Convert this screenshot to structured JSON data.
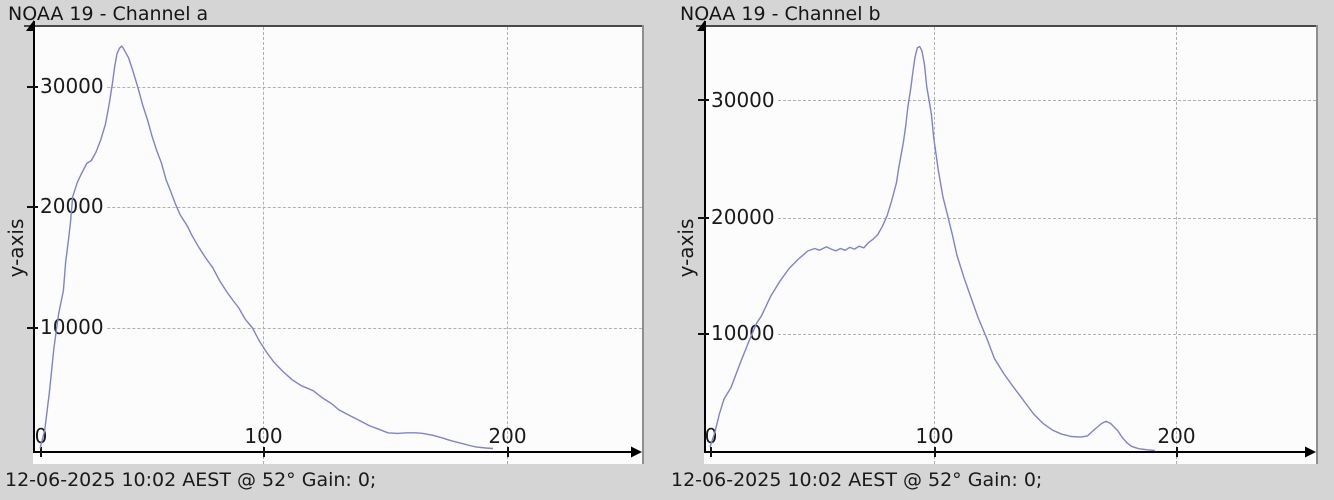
{
  "page": {
    "background": "#d5d5d5",
    "plot_background": "#fcfcfc",
    "grid_color": "#b0b0b0",
    "curve_color": "#8181d1"
  },
  "charts": [
    {
      "title": "NOAA 19 - Channel a",
      "y_axis_label": "y-axis",
      "caption": "12-06-2025 10:02 AEST @ 52° Gain: 0;",
      "x_tick_labels": [
        "0",
        "100",
        "200"
      ],
      "y_tick_labels": [
        "30000",
        "20000",
        "10000"
      ],
      "line_color": "#8181d1",
      "chart_data": {
        "type": "line",
        "title": "NOAA 19 - Channel a",
        "xlabel": "",
        "ylabel": "y-axis",
        "x_ticks": [
          0,
          100,
          200
        ],
        "y_ticks": [
          10000,
          20000,
          30000
        ],
        "xlim": [
          0,
          258
        ],
        "ylim": [
          0,
          35200
        ],
        "grid": true,
        "points": [
          [
            0,
            0
          ],
          [
            2,
            1500
          ],
          [
            4,
            4600
          ],
          [
            6,
            8400
          ],
          [
            8,
            11200
          ],
          [
            10,
            13100
          ],
          [
            11,
            15500
          ],
          [
            12,
            17000
          ],
          [
            13,
            18700
          ],
          [
            14,
            20900
          ],
          [
            16,
            22100
          ],
          [
            18,
            22900
          ],
          [
            20,
            23650
          ],
          [
            22,
            23900
          ],
          [
            24,
            24600
          ],
          [
            26,
            25600
          ],
          [
            28,
            26900
          ],
          [
            29,
            27900
          ],
          [
            30,
            29000
          ],
          [
            31,
            30300
          ],
          [
            32,
            31700
          ],
          [
            33,
            32800
          ],
          [
            34,
            33200
          ],
          [
            35,
            33400
          ],
          [
            36,
            33100
          ],
          [
            38,
            32400
          ],
          [
            40,
            31200
          ],
          [
            42,
            29900
          ],
          [
            44,
            28500
          ],
          [
            46,
            27300
          ],
          [
            48,
            25900
          ],
          [
            50,
            24700
          ],
          [
            52,
            23700
          ],
          [
            54,
            22300
          ],
          [
            56,
            21300
          ],
          [
            58,
            20300
          ],
          [
            60,
            19400
          ],
          [
            63,
            18500
          ],
          [
            65,
            17700
          ],
          [
            68,
            16700
          ],
          [
            71,
            15800
          ],
          [
            74,
            15000
          ],
          [
            77,
            13900
          ],
          [
            80,
            13000
          ],
          [
            83,
            12200
          ],
          [
            85,
            11700
          ],
          [
            88,
            10700
          ],
          [
            91,
            10000
          ],
          [
            94,
            8900
          ],
          [
            97,
            8000
          ],
          [
            100,
            7200
          ],
          [
            104,
            6400
          ],
          [
            108,
            5700
          ],
          [
            112,
            5200
          ],
          [
            117,
            4800
          ],
          [
            121,
            4200
          ],
          [
            125,
            3700
          ],
          [
            128,
            3200
          ],
          [
            132,
            2800
          ],
          [
            137,
            2300
          ],
          [
            141,
            1900
          ],
          [
            145,
            1600
          ],
          [
            149,
            1300
          ],
          [
            153,
            1250
          ],
          [
            157,
            1300
          ],
          [
            161,
            1300
          ],
          [
            164,
            1250
          ],
          [
            168,
            1100
          ],
          [
            172,
            900
          ],
          [
            176,
            650
          ],
          [
            180,
            450
          ],
          [
            184,
            250
          ],
          [
            187,
            120
          ],
          [
            191,
            40
          ],
          [
            194,
            0
          ]
        ]
      }
    },
    {
      "title": "NOAA 19 - Channel b",
      "y_axis_label": "y-axis",
      "caption": "12-06-2025 10:02 AEST @ 52° Gain: 0;",
      "x_tick_labels": [
        "0",
        "100",
        "200"
      ],
      "y_tick_labels": [
        "30000",
        "20000",
        "10000"
      ],
      "line_color": "#8181d1",
      "chart_data": {
        "type": "line",
        "title": "NOAA 19 - Channel b",
        "xlabel": "",
        "ylabel": "y-axis",
        "x_ticks": [
          0,
          100,
          200
        ],
        "y_ticks": [
          10000,
          20000,
          30000
        ],
        "xlim": [
          0,
          260
        ],
        "ylim": [
          0,
          36400
        ],
        "grid": true,
        "points": [
          [
            0,
            300
          ],
          [
            2,
            1500
          ],
          [
            4,
            3100
          ],
          [
            6,
            4400
          ],
          [
            9,
            5400
          ],
          [
            13,
            7500
          ],
          [
            17,
            9500
          ],
          [
            20,
            10900
          ],
          [
            22,
            11500
          ],
          [
            26,
            13200
          ],
          [
            30,
            14500
          ],
          [
            34,
            15600
          ],
          [
            38,
            16400
          ],
          [
            42,
            17100
          ],
          [
            45,
            17300
          ],
          [
            47,
            17150
          ],
          [
            50,
            17450
          ],
          [
            52,
            17250
          ],
          [
            54,
            17100
          ],
          [
            56,
            17300
          ],
          [
            58,
            17150
          ],
          [
            60,
            17400
          ],
          [
            62,
            17250
          ],
          [
            64,
            17500
          ],
          [
            66,
            17350
          ],
          [
            68,
            17800
          ],
          [
            70,
            18100
          ],
          [
            72,
            18500
          ],
          [
            74,
            19200
          ],
          [
            76,
            20100
          ],
          [
            78,
            21400
          ],
          [
            80,
            22900
          ],
          [
            81,
            24200
          ],
          [
            83,
            26400
          ],
          [
            84,
            27800
          ],
          [
            85,
            29500
          ],
          [
            86,
            30800
          ],
          [
            87,
            32300
          ],
          [
            88,
            33700
          ],
          [
            89,
            34500
          ],
          [
            90,
            34600
          ],
          [
            91,
            34200
          ],
          [
            92,
            33100
          ],
          [
            93,
            31200
          ],
          [
            95,
            28800
          ],
          [
            96,
            26800
          ],
          [
            98,
            24000
          ],
          [
            100,
            21700
          ],
          [
            102,
            20100
          ],
          [
            104,
            18500
          ],
          [
            106,
            16700
          ],
          [
            109,
            14800
          ],
          [
            112,
            13100
          ],
          [
            115,
            11400
          ],
          [
            119,
            9500
          ],
          [
            122,
            7900
          ],
          [
            126,
            6600
          ],
          [
            130,
            5500
          ],
          [
            133,
            4700
          ],
          [
            136,
            3900
          ],
          [
            139,
            3100
          ],
          [
            143,
            2300
          ],
          [
            147,
            1750
          ],
          [
            151,
            1400
          ],
          [
            155,
            1200
          ],
          [
            159,
            1150
          ],
          [
            162,
            1250
          ],
          [
            165,
            1800
          ],
          [
            168,
            2300
          ],
          [
            170,
            2500
          ],
          [
            172,
            2300
          ],
          [
            175,
            1700
          ],
          [
            177,
            1100
          ],
          [
            179,
            650
          ],
          [
            181,
            350
          ],
          [
            184,
            150
          ],
          [
            188,
            50
          ],
          [
            191,
            0
          ]
        ]
      }
    }
  ]
}
